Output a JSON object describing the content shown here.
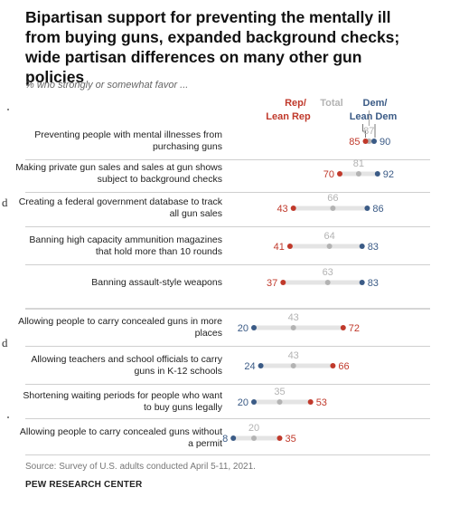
{
  "title": "Bipartisan support for preventing the mentally ill from buying guns, expanded background checks; wide partisan differences on many other gun policies",
  "subtitle": "% who strongly or somewhat favor ...",
  "legend": {
    "rep_line1": "Rep/",
    "rep_line2": "Lean Rep",
    "total": "Total",
    "dem_line1": "Dem/",
    "dem_line2": "Lean Dem"
  },
  "colors": {
    "rep": "#c0392b",
    "total": "#b3b3b3",
    "dem": "#3b5b86",
    "track": "#e4e4e4"
  },
  "stray_text": [
    "d",
    "d"
  ],
  "source": "Source: Survey of U.S. adults conducted April 5-11, 2021.",
  "credit": "PEW RESEARCH CENTER",
  "chart_data": {
    "type": "dot",
    "series_names": [
      "Rep/ Lean Rep",
      "Total",
      "Dem/ Lean Dem"
    ],
    "rows": [
      {
        "label": "Preventing people with mental illnesses from purchasing guns",
        "rep": 85,
        "total": 87,
        "dem": 90,
        "group": 1
      },
      {
        "label": "Making private gun sales and sales at gun shows subject to background checks",
        "rep": 70,
        "total": 81,
        "dem": 92,
        "group": 1
      },
      {
        "label": "Creating a federal government database to track all gun sales",
        "rep": 43,
        "total": 66,
        "dem": 86,
        "group": 1
      },
      {
        "label": "Banning high capacity ammunition magazines that hold more than 10 rounds",
        "rep": 41,
        "total": 64,
        "dem": 83,
        "group": 1
      },
      {
        "label": "Banning assault-style weapons",
        "rep": 37,
        "total": 63,
        "dem": 83,
        "group": 1
      },
      {
        "label": "Allowing people to carry concealed guns in more places",
        "rep": 72,
        "total": 43,
        "dem": 20,
        "group": 2
      },
      {
        "label": "Allowing teachers and school officials to carry guns in K-12 schools",
        "rep": 66,
        "total": 43,
        "dem": 24,
        "group": 2
      },
      {
        "label": "Shortening waiting periods for people who want to buy guns legally",
        "rep": 53,
        "total": 35,
        "dem": 20,
        "group": 2
      },
      {
        "label": "Allowing people to carry concealed guns without a permit",
        "rep": 35,
        "total": 20,
        "dem": 8,
        "group": 2
      }
    ],
    "xlim": [
      0,
      100
    ],
    "grid": false
  }
}
